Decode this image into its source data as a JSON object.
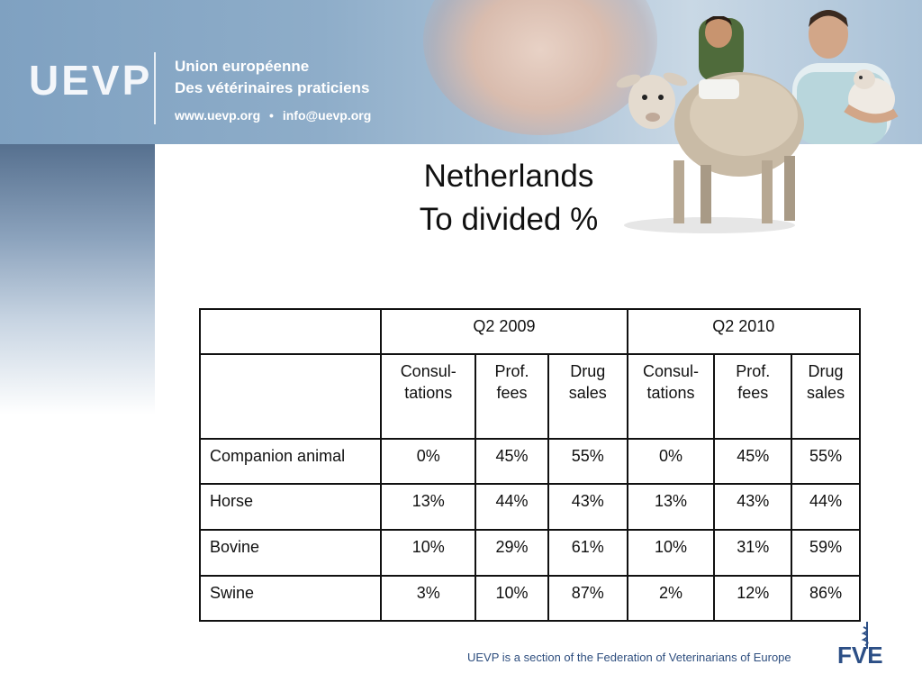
{
  "header": {
    "logo": "UEVP",
    "org_line1": "Union européenne",
    "org_line2": "Des vétérinaires praticiens",
    "website": "www.uevp.org",
    "separator": "•",
    "email": "info@uevp.org"
  },
  "title": {
    "line1": "Netherlands",
    "line2": "To divided %"
  },
  "table": {
    "periods": [
      "Q2 2009",
      "Q2 2010"
    ],
    "subheaders": [
      [
        "Consul-",
        "tations"
      ],
      [
        "Prof.",
        "fees"
      ],
      [
        "Drug",
        "sales"
      ],
      [
        "Consul-",
        "tations"
      ],
      [
        "Prof.",
        "fees"
      ],
      [
        "Drug",
        "sales"
      ]
    ],
    "rows": [
      {
        "label": "Companion animal",
        "values": [
          "0%",
          "45%",
          "55%",
          "0%",
          "45%",
          "55%"
        ]
      },
      {
        "label": "Horse",
        "values": [
          "13%",
          "44%",
          "43%",
          "13%",
          "43%",
          "44%"
        ]
      },
      {
        "label": "Bovine",
        "values": [
          "10%",
          "29%",
          "61%",
          "10%",
          "31%",
          "59%"
        ]
      },
      {
        "label": "Swine",
        "values": [
          "3%",
          "10%",
          "87%",
          "2%",
          "12%",
          "86%"
        ]
      }
    ]
  },
  "footer": {
    "text": "UEVP is a section of the Federation of Veterinarians of Europe",
    "logo": "FVE"
  },
  "colors": {
    "header_blue": "#8eadc9",
    "sidebar_blue": "#56708f",
    "footer_text": "#2f4f7f",
    "fve_logo": "#2c4f86"
  }
}
